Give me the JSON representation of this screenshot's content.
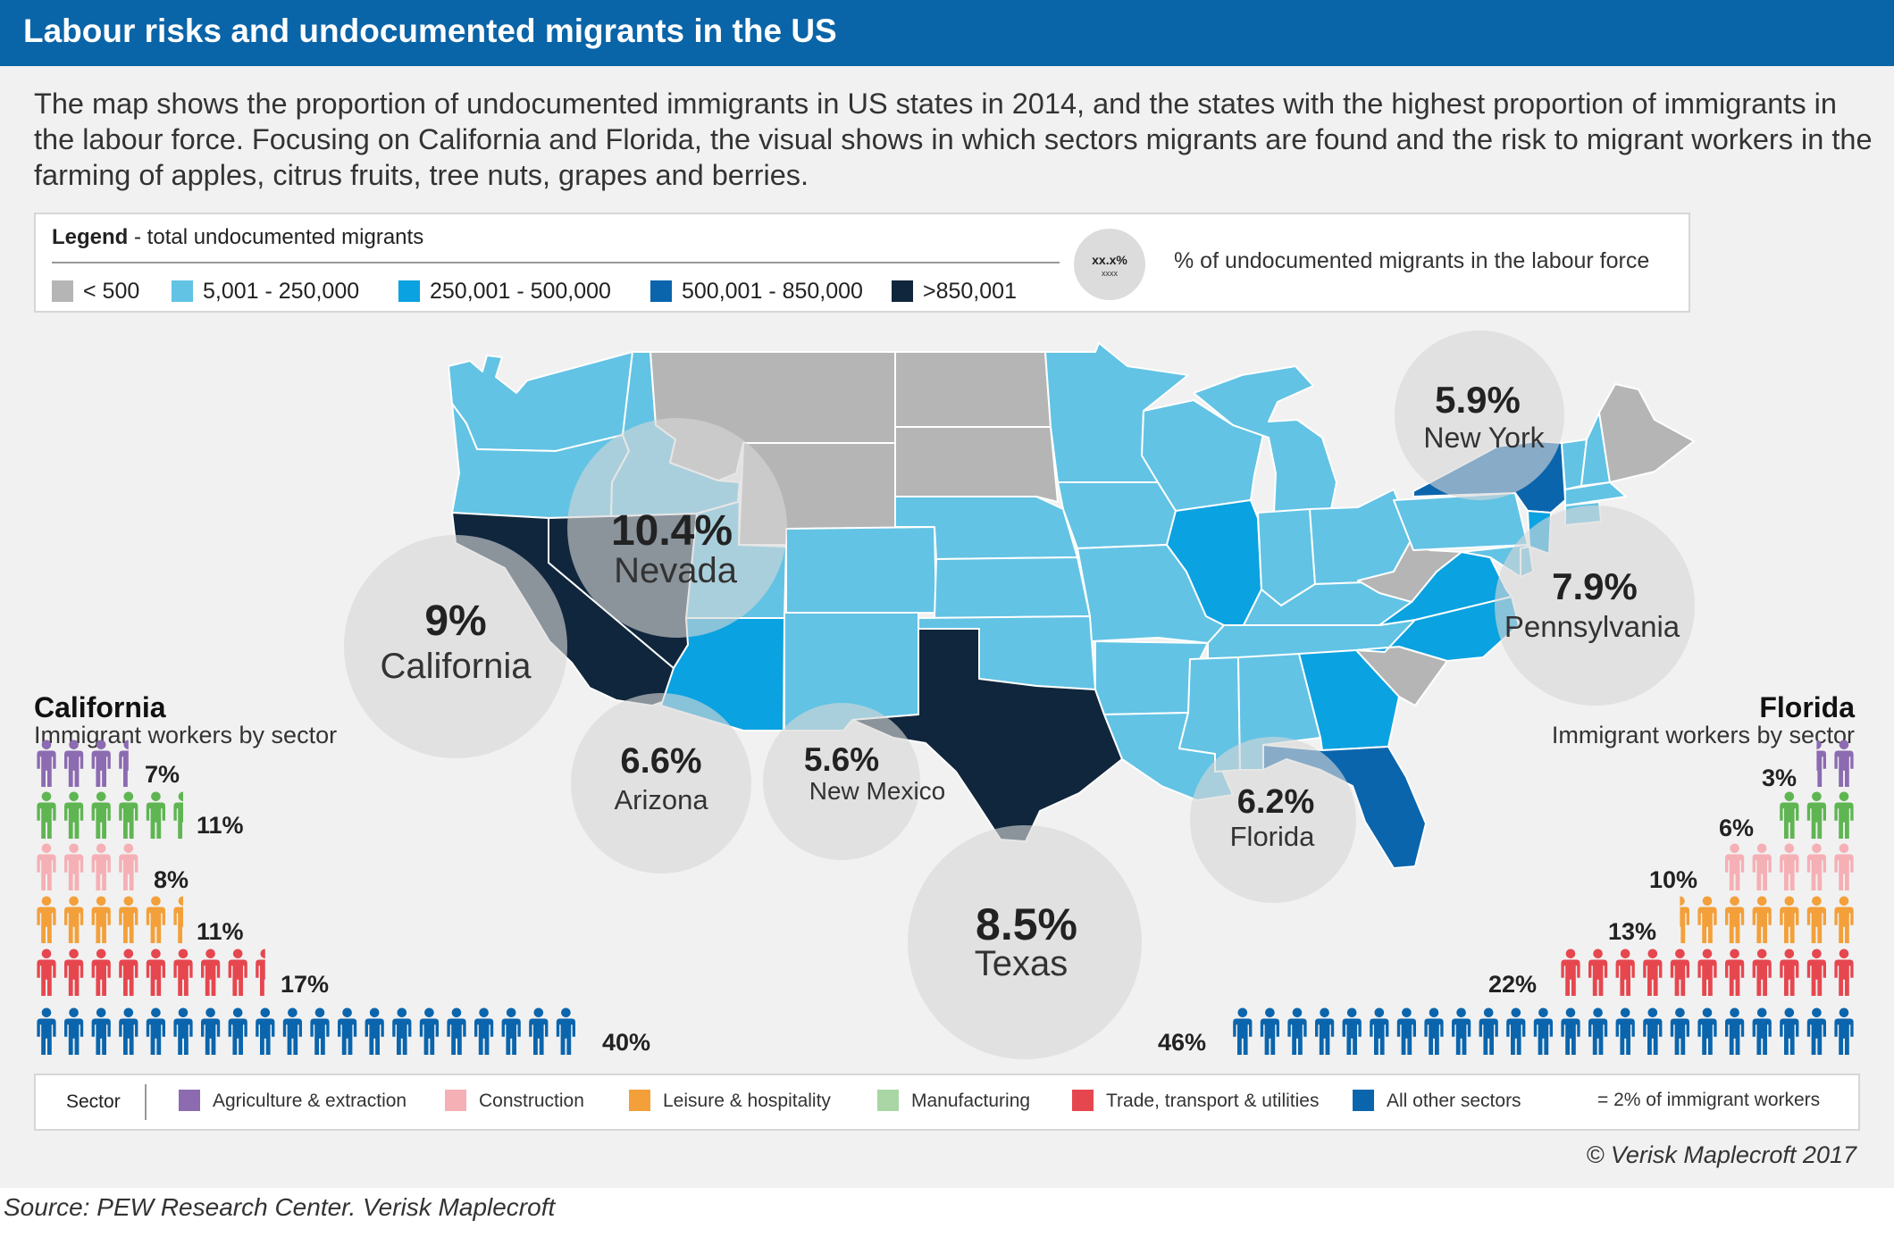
{
  "header": {
    "title": "Labour risks and undocumented migrants in the US"
  },
  "intro": "The map shows the proportion of undocumented immigrants in US states in 2014, and the states with the highest proportion of immigrants in the labour force. Focusing on California and Florida, the visual shows in which sectors migrants are found and the risk to migrant workers in the farming of apples, citrus fruits, tree nuts, grapes and berries.",
  "legend": {
    "title_bold": "Legend",
    "title_rest": " -  total  undocumented migrants",
    "items": [
      {
        "label": "< 500",
        "color": "#b5b5b5"
      },
      {
        "label": "5,001 - 250,000",
        "color": "#62c3e4"
      },
      {
        "label": "250,001 - 500,000",
        "color": "#0aa2e0"
      },
      {
        "label": "500,001 - 850,000",
        "color": "#0a65ad"
      },
      {
        "label": ">850,001",
        "color": "#10263c"
      }
    ],
    "circle_sample": "xx.x%",
    "circle_sample_sub": "xxxx",
    "circle_text": "% of undocumented migrants in the labour force"
  },
  "map": {
    "states_by_class": {
      "<500": [
        "Montana",
        "North Dakota",
        "South Dakota",
        "Wyoming",
        "Maine",
        "West Virginia",
        "South Carolina"
      ],
      "5001-250000": [
        "Washington",
        "Oregon",
        "Idaho",
        "Utah",
        "Colorado",
        "New Mexico",
        "Nebraska",
        "Kansas",
        "Oklahoma",
        "Minnesota",
        "Iowa",
        "Missouri",
        "Arkansas",
        "Louisiana",
        "Wisconsin",
        "Michigan",
        "Indiana",
        "Ohio",
        "Kentucky",
        "Tennessee",
        "Mississippi",
        "Alabama",
        "Pennsylvania",
        "Vermont",
        "New Hampshire",
        "Massachusetts",
        "Connecticut",
        "Delaware",
        "Maryland"
      ],
      "250001-500000": [
        "Arizona",
        "Illinois",
        "Georgia",
        "Virginia",
        "North Carolina",
        "New Jersey"
      ],
      "500001-850000": [
        "New York",
        "Florida"
      ],
      ">850001": [
        "California",
        "Nevada",
        "Texas"
      ]
    },
    "bubbles": [
      {
        "id": "california",
        "pct": "9%",
        "name": "California"
      },
      {
        "id": "nevada",
        "pct": "10.4%",
        "name": "Nevada"
      },
      {
        "id": "arizona",
        "pct": "6.6%",
        "name": "Arizona"
      },
      {
        "id": "new-mexico",
        "pct": "5.6%",
        "name": "New Mexico"
      },
      {
        "id": "texas",
        "pct": "8.5%",
        "name": "Texas"
      },
      {
        "id": "florida",
        "pct": "6.2%",
        "name": "Florida"
      },
      {
        "id": "new-york",
        "pct": "5.9%",
        "name": "New York"
      },
      {
        "id": "pennsylvania",
        "pct": "7.9%",
        "name": "Pennsylvania"
      }
    ]
  },
  "california": {
    "title": "California",
    "subtitle": "Immigrant workers by sector",
    "sectors": [
      {
        "sector": "Agriculture & extraction",
        "percent": 7,
        "label": "7%"
      },
      {
        "sector": "Manufacturing",
        "percent": 11,
        "label": "11%"
      },
      {
        "sector": "Construction",
        "percent": 8,
        "label": "8%"
      },
      {
        "sector": "Leisure & hospitality",
        "percent": 11,
        "label": "11%"
      },
      {
        "sector": "Trade, transport & utilities",
        "percent": 17,
        "label": "17%"
      },
      {
        "sector": "All other sectors",
        "percent": 40,
        "label": "40%"
      }
    ]
  },
  "florida": {
    "title": "Florida",
    "subtitle": "Immigrant workers by sector",
    "sectors": [
      {
        "sector": "Agriculture & extraction",
        "percent": 3,
        "label": "3%"
      },
      {
        "sector": "Manufacturing",
        "percent": 6,
        "label": "6%"
      },
      {
        "sector": "Construction",
        "percent": 10,
        "label": "10%"
      },
      {
        "sector": "Leisure & hospitality",
        "percent": 13,
        "label": "13%"
      },
      {
        "sector": "Trade, transport & utilities",
        "percent": 22,
        "label": "22%"
      },
      {
        "sector": "All other sectors",
        "percent": 46,
        "label": "46%"
      }
    ]
  },
  "sector_legend": {
    "label": "Sector",
    "items": [
      {
        "label": "Agriculture & extraction",
        "color": "#8c6bb1"
      },
      {
        "label": "Construction",
        "color": "#f5b0b5"
      },
      {
        "label": "Leisure & hospitality",
        "color": "#f3a03a"
      },
      {
        "label": "Manufacturing",
        "color": "#a9d6a4"
      },
      {
        "label": "Trade, transport & utilities",
        "color": "#e6474f"
      },
      {
        "label": "All other sectors",
        "color": "#0a65ad"
      }
    ],
    "unit_label": "= 2% of immigrant workers",
    "unit_icon": "person-icon",
    "unit_percent": 2
  },
  "picto_colors": {
    "Agriculture & extraction": "#8c6bb1",
    "Manufacturing": "#5fb552",
    "Construction": "#f5b0b5",
    "Leisure & hospitality": "#f3a03a",
    "Trade, transport & utilities": "#e6474f",
    "All other sectors": "#0a65ad"
  },
  "copyright": "© Verisk Maplecroft 2017",
  "source": "Source: PEW Research Center. Verisk Maplecroft"
}
